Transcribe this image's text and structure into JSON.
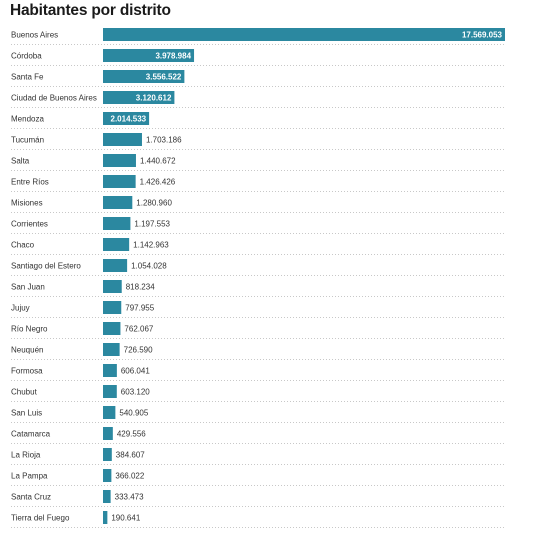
{
  "title": "Habitantes por distrito",
  "colors": {
    "bar": "#2b88a0",
    "grid": "#c8c8c8"
  },
  "chart_data": {
    "type": "bar",
    "orientation": "horizontal",
    "title": "Habitantes por distrito",
    "xlabel": "",
    "ylabel": "",
    "xlim": [
      0,
      17569053
    ],
    "grid": true,
    "categories": [
      "Buenos Aires",
      "Córdoba",
      "Santa Fe",
      "Ciudad de Buenos Aires",
      "Mendoza",
      "Tucumán",
      "Salta",
      "Entre Ríos",
      "Misiones",
      "Corrientes",
      "Chaco",
      "Santiago del Estero",
      "San Juan",
      "Jujuy",
      "Río Negro",
      "Neuquén",
      "Formosa",
      "Chubut",
      "San Luis",
      "Catamarca",
      "La Rioja",
      "La Pampa",
      "Santa Cruz",
      "Tierra del Fuego"
    ],
    "values": [
      17569053,
      3978984,
      3556522,
      3120612,
      2014533,
      1703186,
      1440672,
      1426426,
      1280960,
      1197553,
      1142963,
      1054028,
      818234,
      797955,
      762067,
      726590,
      606041,
      603120,
      540905,
      429556,
      384607,
      366022,
      333473,
      190641
    ],
    "value_labels": [
      "17.569.053",
      "3.978.984",
      "3.556.522",
      "3.120.612",
      "2.014.533",
      "1.703.186",
      "1.440.672",
      "1.426.426",
      "1.280.960",
      "1.197.553",
      "1.142.963",
      "1.054.028",
      "818.234",
      "797.955",
      "762.067",
      "726.590",
      "606.041",
      "603.120",
      "540.905",
      "429.556",
      "384.607",
      "366.022",
      "333.473",
      "190.641"
    ]
  }
}
